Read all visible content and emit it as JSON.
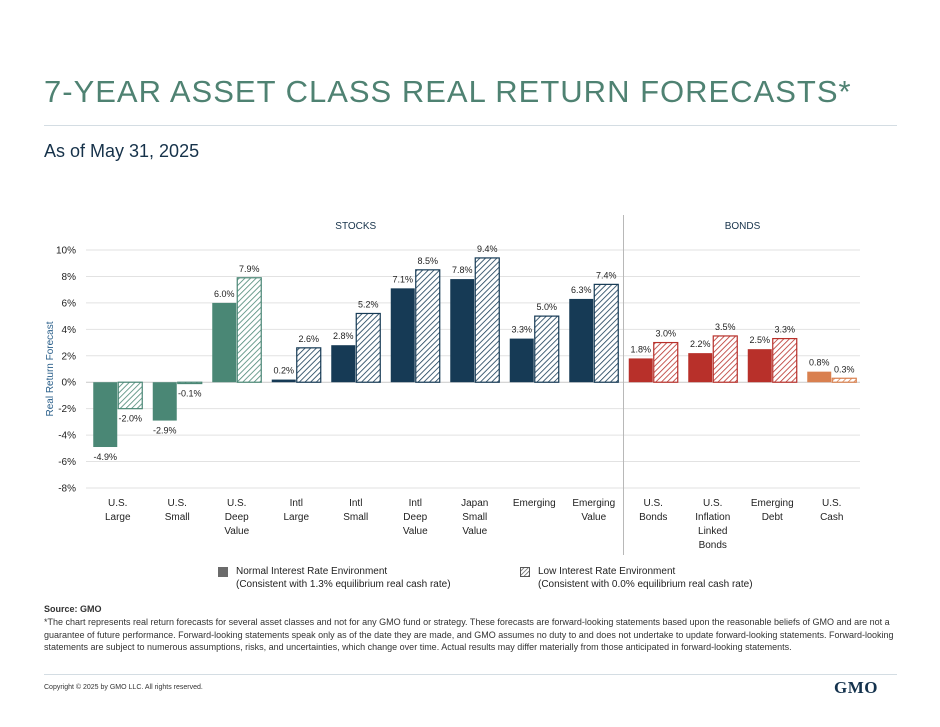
{
  "page": {
    "title": "7-YEAR ASSET CLASS REAL RETURN FORECASTS*",
    "subtitle": "As of May 31, 2025"
  },
  "chart_data": {
    "type": "bar",
    "ylabel": "Real Return Forecast",
    "ylim": [
      -8,
      10
    ],
    "yticks": [
      -8,
      -6,
      -4,
      -2,
      0,
      2,
      4,
      6,
      8,
      10
    ],
    "ytick_labels": [
      "-8%",
      "-6%",
      "-4%",
      "-2%",
      "0%",
      "2%",
      "4%",
      "6%",
      "8%",
      "10%"
    ],
    "grid": true,
    "groups": [
      {
        "label": "STOCKS",
        "categories": 9
      },
      {
        "label": "BONDS",
        "categories": 4
      }
    ],
    "categories": [
      [
        "U.S.",
        "Large"
      ],
      [
        "U.S.",
        "Small"
      ],
      [
        "U.S.",
        "Deep",
        "Value"
      ],
      [
        "Intl",
        "Large"
      ],
      [
        "Intl",
        "Small"
      ],
      [
        "Intl",
        "Deep",
        "Value"
      ],
      [
        "Japan",
        "Small",
        "Value"
      ],
      [
        "Emerging"
      ],
      [
        "Emerging",
        "Value"
      ],
      [
        "U.S.",
        "Bonds"
      ],
      [
        "U.S.",
        "Inflation",
        "Linked",
        "Bonds"
      ],
      [
        "Emerging",
        "Debt"
      ],
      [
        "U.S.",
        "Cash"
      ]
    ],
    "series": [
      {
        "name": "Normal Interest Rate Environment",
        "note": "(Consistent with 1.3% equilibrium real cash rate)",
        "pattern": "solid",
        "values": [
          -4.9,
          -2.9,
          6.0,
          0.2,
          2.8,
          7.1,
          7.8,
          3.3,
          6.3,
          1.8,
          2.2,
          2.5,
          0.8
        ],
        "labels": [
          "-4.9%",
          "-2.9%",
          "6.0%",
          "0.2%",
          "2.8%",
          "7.1%",
          "7.8%",
          "3.3%",
          "6.3%",
          "1.8%",
          "2.2%",
          "2.5%",
          "0.8%"
        ]
      },
      {
        "name": "Low Interest Rate Environment",
        "note": "(Consistent with 0.0% equilibrium real cash rate)",
        "pattern": "hatched",
        "values": [
          -2.0,
          -0.1,
          7.9,
          2.6,
          5.2,
          8.5,
          9.4,
          5.0,
          7.4,
          3.0,
          3.5,
          3.3,
          0.3
        ],
        "labels": [
          "-2.0%",
          "-0.1%",
          "7.9%",
          "2.6%",
          "5.2%",
          "8.5%",
          "9.4%",
          "5.0%",
          "7.4%",
          "3.0%",
          "3.5%",
          "3.3%",
          "0.3%"
        ]
      }
    ],
    "colors": [
      "#4a8775",
      "#4a8775",
      "#4a8775",
      "#163a55",
      "#163a55",
      "#163a55",
      "#163a55",
      "#163a55",
      "#163a55",
      "#b8302a",
      "#b8302a",
      "#b8302a",
      "#d9804f"
    ]
  },
  "legend": {
    "swatch_color": "#6b6b6b",
    "normal_name": "Normal Interest Rate Environment",
    "normal_note": "(Consistent with 1.3% equilibrium real cash rate)",
    "low_name": "Low Interest Rate Environment",
    "low_note": "(Consistent with 0.0% equilibrium real cash rate)"
  },
  "footer": {
    "source": "Source: GMO",
    "footnote": "*The chart represents real return forecasts for several asset classes and not for any GMO fund or strategy. These forecasts are forward-looking statements based upon the reasonable beliefs of GMO and are not a guarantee of future performance. Forward-looking statements speak only as of the date they are made, and GMO assumes no duty to and does not undertake to update forward-looking statements. Forward-looking statements are subject to numerous assumptions, risks, and uncertainties, which change over time. Actual results may differ materially from those anticipated in forward-looking statements.",
    "copyright": "Copyright © 2025 by GMO LLC. All rights reserved.",
    "logo": "GMO"
  }
}
